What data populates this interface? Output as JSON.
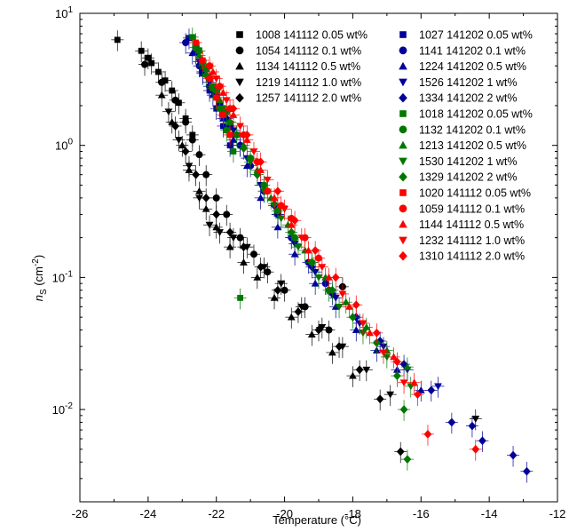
{
  "chart_data": {
    "type": "scatter",
    "xlabel": "Temperature (°C)",
    "ylabel_main": "n",
    "ylabel_sub": "S",
    "ylabel_unit_pre": " (cm",
    "ylabel_unit_sup": "-2",
    "ylabel_unit_post": ")",
    "xlim": [
      -26,
      -12
    ],
    "ylim": [
      0.002,
      10
    ],
    "yscale": "log",
    "x_ticks": [
      -26,
      -24,
      -22,
      -20,
      -18,
      -16,
      -14,
      -12
    ],
    "x_tick_labels": [
      "-26",
      "-24",
      "-22",
      "-20",
      "-18",
      "-16",
      "-14",
      "-12"
    ],
    "y_ticks": [
      0.01,
      0.1,
      1,
      10
    ],
    "y_tick_labels": [
      {
        "base": "10",
        "exp": "-2"
      },
      {
        "base": "10",
        "exp": "-1"
      },
      {
        "base": "10",
        "exp": "0"
      },
      {
        "base": "10",
        "exp": "1"
      }
    ],
    "legend_position": "top-right",
    "series": [
      {
        "name": "1008 141112 0.05 wt%",
        "color": "#000000",
        "marker": "square",
        "points": [
          [
            -24.9,
            6.3
          ],
          [
            -24.2,
            5.2
          ],
          [
            -24.0,
            4.6
          ],
          [
            -23.9,
            4.2
          ],
          [
            -23.7,
            3.6
          ],
          [
            -23.5,
            3.1
          ],
          [
            -23.3,
            2.6
          ],
          [
            -23.1,
            2.1
          ],
          [
            -22.9,
            1.6
          ],
          [
            -22.7,
            1.2
          ]
        ]
      },
      {
        "name": "1054 141112 0.1 wt%",
        "color": "#000000",
        "marker": "circle",
        "points": [
          [
            -24.1,
            4.1
          ],
          [
            -23.6,
            3.0
          ],
          [
            -23.2,
            2.2
          ],
          [
            -22.9,
            1.5
          ],
          [
            -22.7,
            1.1
          ],
          [
            -22.5,
            0.85
          ],
          [
            -22.3,
            0.6
          ],
          [
            -22.0,
            0.4
          ],
          [
            -21.7,
            0.3
          ],
          [
            -21.3,
            0.2
          ],
          [
            -20.9,
            0.15
          ],
          [
            -20.5,
            0.11
          ],
          [
            -20.0,
            0.08
          ],
          [
            -19.4,
            0.06
          ],
          [
            -18.7,
            0.04
          ],
          [
            -18.3,
            0.085
          ]
        ]
      },
      {
        "name": "1134 141112 0.5 wt%",
        "color": "#000000",
        "marker": "triangle-up",
        "points": [
          [
            -23.6,
            2.4
          ],
          [
            -23.3,
            1.5
          ],
          [
            -23.0,
            1.0
          ],
          [
            -22.8,
            0.65
          ],
          [
            -22.5,
            0.45
          ],
          [
            -22.3,
            0.33
          ],
          [
            -22.0,
            0.24
          ],
          [
            -21.6,
            0.17
          ],
          [
            -21.2,
            0.13
          ],
          [
            -20.8,
            0.1
          ],
          [
            -20.3,
            0.07
          ],
          [
            -19.8,
            0.05
          ],
          [
            -19.2,
            0.037
          ],
          [
            -18.6,
            0.027
          ],
          [
            -18.0,
            0.018
          ]
        ]
      },
      {
        "name": "1219 141112 1.0 wt%",
        "color": "#000000",
        "marker": "triangle-down",
        "points": [
          [
            -23.4,
            1.8
          ],
          [
            -23.1,
            1.1
          ],
          [
            -22.8,
            0.7
          ],
          [
            -22.5,
            0.4
          ],
          [
            -22.2,
            0.25
          ],
          [
            -21.9,
            0.22
          ],
          [
            -21.5,
            0.2
          ],
          [
            -21.1,
            0.17
          ],
          [
            -20.6,
            0.12
          ],
          [
            -20.1,
            0.09
          ],
          [
            -19.5,
            0.06
          ],
          [
            -18.9,
            0.042
          ],
          [
            -18.3,
            0.03
          ],
          [
            -17.6,
            0.02
          ],
          [
            -16.9,
            0.013
          ],
          [
            -14.4,
            0.0085
          ]
        ]
      },
      {
        "name": "1257 141112 2.0 wt%",
        "color": "#000000",
        "marker": "diamond",
        "points": [
          [
            -23.2,
            1.4
          ],
          [
            -22.9,
            0.9
          ],
          [
            -22.6,
            0.6
          ],
          [
            -22.3,
            0.4
          ],
          [
            -22.0,
            0.3
          ],
          [
            -21.6,
            0.22
          ],
          [
            -21.2,
            0.17
          ],
          [
            -20.7,
            0.12
          ],
          [
            -20.2,
            0.08
          ],
          [
            -19.6,
            0.055
          ],
          [
            -19.0,
            0.04
          ],
          [
            -18.4,
            0.03
          ],
          [
            -17.8,
            0.02
          ],
          [
            -17.2,
            0.012
          ],
          [
            -16.6,
            0.0048
          ]
        ]
      },
      {
        "name": "1027 141202 0.05 wt%",
        "color": "#000099",
        "marker": "square",
        "points": [
          [
            -22.8,
            6.5
          ],
          [
            -22.6,
            5.0
          ],
          [
            -22.4,
            3.6
          ],
          [
            -22.2,
            2.6
          ],
          [
            -22.0,
            1.9
          ],
          [
            -21.8,
            1.4
          ],
          [
            -21.6,
            1.0
          ]
        ]
      },
      {
        "name": "1141 141202 0.1 wt%",
        "color": "#000099",
        "marker": "circle",
        "points": [
          [
            -22.9,
            6.0
          ],
          [
            -22.5,
            4.0
          ],
          [
            -22.2,
            2.8
          ],
          [
            -21.9,
            2.0
          ],
          [
            -21.6,
            1.4
          ],
          [
            -21.3,
            1.0
          ],
          [
            -21.0,
            0.7
          ],
          [
            -20.6,
            0.45
          ],
          [
            -20.2,
            0.3
          ],
          [
            -19.8,
            0.2
          ],
          [
            -19.3,
            0.13
          ],
          [
            -18.8,
            0.09
          ]
        ]
      },
      {
        "name": "1224 141202 0.5 wt%",
        "color": "#000099",
        "marker": "triangle-up",
        "points": [
          [
            -22.7,
            5.0
          ],
          [
            -22.4,
            3.5
          ],
          [
            -22.1,
            2.4
          ],
          [
            -21.8,
            1.6
          ],
          [
            -21.5,
            1.1
          ],
          [
            -21.1,
            0.7
          ],
          [
            -20.7,
            0.4
          ],
          [
            -20.2,
            0.24
          ],
          [
            -19.7,
            0.15
          ],
          [
            -19.1,
            0.09
          ],
          [
            -18.5,
            0.06
          ],
          [
            -17.9,
            0.04
          ],
          [
            -17.3,
            0.028
          ],
          [
            -16.7,
            0.02
          ],
          [
            -16.0,
            0.014
          ]
        ]
      },
      {
        "name": "1526 141202 1 wt%",
        "color": "#000099",
        "marker": "triangle-down",
        "points": [
          [
            -22.5,
            4.3
          ],
          [
            -22.2,
            3.0
          ],
          [
            -21.9,
            2.0
          ],
          [
            -21.5,
            1.3
          ],
          [
            -21.1,
            0.8
          ],
          [
            -20.7,
            0.5
          ],
          [
            -20.2,
            0.3
          ],
          [
            -19.7,
            0.18
          ],
          [
            -19.1,
            0.11
          ],
          [
            -18.5,
            0.07
          ],
          [
            -17.8,
            0.045
          ],
          [
            -17.1,
            0.03
          ],
          [
            -16.4,
            0.02
          ],
          [
            -15.5,
            0.015
          ]
        ]
      },
      {
        "name": "1334 141202 2 wt%",
        "color": "#000099",
        "marker": "diamond",
        "points": [
          [
            -22.4,
            3.6
          ],
          [
            -22.0,
            2.4
          ],
          [
            -21.7,
            1.6
          ],
          [
            -21.3,
            1.0
          ],
          [
            -20.8,
            0.6
          ],
          [
            -20.3,
            0.35
          ],
          [
            -19.8,
            0.2
          ],
          [
            -19.2,
            0.12
          ],
          [
            -18.6,
            0.075
          ],
          [
            -17.9,
            0.05
          ],
          [
            -17.2,
            0.033
          ],
          [
            -16.5,
            0.022
          ],
          [
            -15.7,
            0.014
          ],
          [
            -15.1,
            0.008
          ],
          [
            -14.5,
            0.0075
          ],
          [
            -14.2,
            0.0058
          ],
          [
            -13.3,
            0.0045
          ],
          [
            -12.9,
            0.0034
          ]
        ]
      },
      {
        "name": "1018 141202 0.05 wt%",
        "color": "#007700",
        "marker": "square",
        "points": [
          [
            -22.7,
            6.6
          ],
          [
            -22.5,
            5.2
          ],
          [
            -22.3,
            3.8
          ],
          [
            -22.1,
            2.7
          ],
          [
            -21.9,
            1.9
          ],
          [
            -21.7,
            1.3
          ],
          [
            -21.5,
            0.9
          ],
          [
            -21.3,
            0.07
          ]
        ]
      },
      {
        "name": "1132 141202 0.1 wt%",
        "color": "#007700",
        "marker": "circle",
        "points": [
          [
            -22.6,
            5.5
          ],
          [
            -22.3,
            3.8
          ],
          [
            -22.0,
            2.6
          ],
          [
            -21.7,
            1.8
          ],
          [
            -21.4,
            1.2
          ],
          [
            -21.0,
            0.8
          ],
          [
            -20.6,
            0.5
          ],
          [
            -20.2,
            0.32
          ],
          [
            -19.7,
            0.2
          ],
          [
            -19.2,
            0.13
          ],
          [
            -18.7,
            0.08
          ]
        ]
      },
      {
        "name": "1213 141202 0.5 wt%",
        "color": "#007700",
        "marker": "triangle-up",
        "points": [
          [
            -22.5,
            4.8
          ],
          [
            -22.2,
            3.3
          ],
          [
            -21.9,
            2.2
          ],
          [
            -21.6,
            1.5
          ],
          [
            -21.2,
            1.0
          ],
          [
            -20.8,
            0.65
          ],
          [
            -20.4,
            0.4
          ],
          [
            -19.9,
            0.25
          ],
          [
            -19.4,
            0.16
          ],
          [
            -18.8,
            0.1
          ],
          [
            -18.2,
            0.065
          ],
          [
            -17.6,
            0.042
          ],
          [
            -17.0,
            0.028
          ],
          [
            -16.4,
            0.021
          ]
        ]
      },
      {
        "name": "1530 141202 1 wt%",
        "color": "#007700",
        "marker": "triangle-down",
        "points": [
          [
            -22.4,
            4.0
          ],
          [
            -22.1,
            2.8
          ],
          [
            -21.8,
            1.9
          ],
          [
            -21.4,
            1.2
          ],
          [
            -21.0,
            0.75
          ],
          [
            -20.6,
            0.45
          ],
          [
            -20.1,
            0.28
          ],
          [
            -19.6,
            0.17
          ],
          [
            -19.0,
            0.1
          ],
          [
            -18.4,
            0.06
          ],
          [
            -17.7,
            0.038
          ],
          [
            -17.0,
            0.025
          ],
          [
            -16.3,
            0.015
          ]
        ]
      },
      {
        "name": "1329 141202 2 wt%",
        "color": "#007700",
        "marker": "diamond",
        "points": [
          [
            -22.3,
            3.4
          ],
          [
            -22.0,
            2.3
          ],
          [
            -21.6,
            1.5
          ],
          [
            -21.2,
            0.95
          ],
          [
            -20.8,
            0.6
          ],
          [
            -20.3,
            0.36
          ],
          [
            -19.8,
            0.22
          ],
          [
            -19.2,
            0.13
          ],
          [
            -18.6,
            0.08
          ],
          [
            -18.0,
            0.05
          ],
          [
            -17.3,
            0.032
          ],
          [
            -16.7,
            0.018
          ],
          [
            -16.5,
            0.01
          ],
          [
            -16.4,
            0.0042
          ]
        ]
      },
      {
        "name": "1020 141112 0.05 wt%",
        "color": "#ff0000",
        "marker": "square",
        "points": [
          [
            -22.6,
            6.0
          ],
          [
            -22.4,
            4.4
          ],
          [
            -22.2,
            3.2
          ],
          [
            -22.0,
            2.3
          ],
          [
            -21.8,
            1.7
          ],
          [
            -21.6,
            1.2
          ]
        ]
      },
      {
        "name": "1059 141112 0.1 wt%",
        "color": "#ff0000",
        "marker": "circle",
        "points": [
          [
            -22.2,
            4.0
          ],
          [
            -21.9,
            2.8
          ],
          [
            -21.6,
            1.9
          ],
          [
            -21.2,
            1.2
          ],
          [
            -20.8,
            0.75
          ],
          [
            -20.5,
            0.45
          ],
          [
            -20.1,
            0.35
          ],
          [
            -19.8,
            0.28
          ],
          [
            -19.4,
            0.2
          ],
          [
            -19.0,
            0.14
          ]
        ]
      },
      {
        "name": "1144 141112 0.5 wt%",
        "color": "#ff0000",
        "marker": "triangle-up",
        "points": [
          [
            -22.1,
            3.6
          ],
          [
            -21.8,
            2.5
          ],
          [
            -21.5,
            1.7
          ],
          [
            -21.1,
            1.1
          ],
          [
            -20.7,
            0.65
          ],
          [
            -20.3,
            0.4
          ],
          [
            -19.8,
            0.25
          ],
          [
            -19.3,
            0.16
          ],
          [
            -18.7,
            0.1
          ],
          [
            -18.1,
            0.06
          ],
          [
            -17.5,
            0.038
          ],
          [
            -16.8,
            0.025
          ],
          [
            -16.2,
            0.016
          ]
        ]
      },
      {
        "name": "1232 141112 1.0 wt%",
        "color": "#ff0000",
        "marker": "triangle-down",
        "points": [
          [
            -22.0,
            3.2
          ],
          [
            -21.7,
            2.2
          ],
          [
            -21.3,
            1.4
          ],
          [
            -20.9,
            0.9
          ],
          [
            -20.5,
            0.55
          ],
          [
            -20.0,
            0.33
          ],
          [
            -19.5,
            0.2
          ],
          [
            -18.9,
            0.12
          ],
          [
            -18.3,
            0.075
          ],
          [
            -17.7,
            0.045
          ],
          [
            -17.1,
            0.027
          ],
          [
            -16.5,
            0.016
          ]
        ]
      },
      {
        "name": "1310 141112 2.0 wt%",
        "color": "#ff0000",
        "marker": "diamond",
        "points": [
          [
            -21.9,
            2.8
          ],
          [
            -21.5,
            1.9
          ],
          [
            -21.1,
            1.2
          ],
          [
            -20.7,
            0.75
          ],
          [
            -20.2,
            0.45
          ],
          [
            -19.7,
            0.27
          ],
          [
            -19.1,
            0.16
          ],
          [
            -18.5,
            0.1
          ],
          [
            -17.9,
            0.062
          ],
          [
            -17.3,
            0.038
          ],
          [
            -16.7,
            0.023
          ],
          [
            -16.1,
            0.013
          ],
          [
            -15.8,
            0.0065
          ],
          [
            -14.4,
            0.005
          ]
        ]
      }
    ]
  }
}
